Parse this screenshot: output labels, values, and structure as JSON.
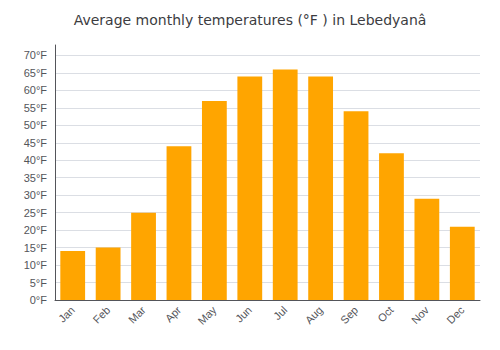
{
  "chart_data": {
    "type": "bar",
    "title": "Average monthly temperatures (°F ) in Lebedyanâ",
    "categories": [
      "Jan",
      "Feb",
      "Mar",
      "Apr",
      "May",
      "Jun",
      "Jul",
      "Aug",
      "Sep",
      "Oct",
      "Nov",
      "Dec"
    ],
    "values": [
      14,
      15,
      25,
      44,
      57,
      64,
      66,
      64,
      54,
      42,
      29,
      21
    ],
    "color": "#FFA500",
    "ylim": [
      0,
      73
    ],
    "yticks": [
      {
        "value": 0,
        "label": "0°F"
      },
      {
        "value": 5,
        "label": "5°F"
      },
      {
        "value": 10,
        "label": "10°F"
      },
      {
        "value": 15,
        "label": "15°F"
      },
      {
        "value": 20,
        "label": "20°F"
      },
      {
        "value": 25,
        "label": "25°F"
      },
      {
        "value": 30,
        "label": "30°F"
      },
      {
        "value": 35,
        "label": "35°F"
      },
      {
        "value": 40,
        "label": "40°F"
      },
      {
        "value": 45,
        "label": "45°F"
      },
      {
        "value": 50,
        "label": "50°F"
      },
      {
        "value": 55,
        "label": "55°F"
      },
      {
        "value": 60,
        "label": "60°F"
      },
      {
        "value": 65,
        "label": "65°F"
      },
      {
        "value": 70,
        "label": "70°F"
      }
    ],
    "grid": true
  }
}
